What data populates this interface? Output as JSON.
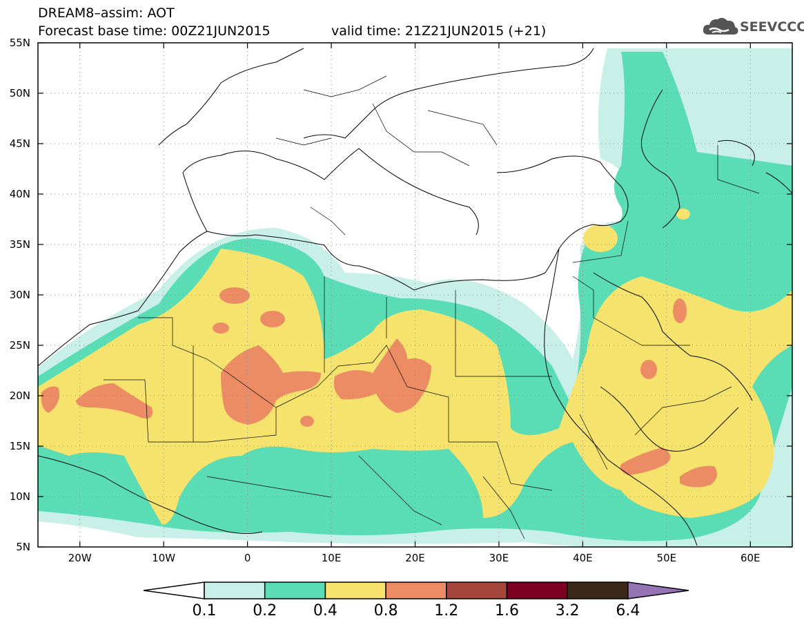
{
  "title": {
    "line1": "DREAM8–assim: AOT",
    "line2": "Forecast base time: 00Z21JUN2015",
    "valid": "valid time: 21Z21JUN2015 (+21)"
  },
  "logo": {
    "text": "SEEVCCC",
    "icon": "cloud-icon",
    "color": "#555555"
  },
  "map": {
    "lon_range": [
      -25,
      65
    ],
    "lat_range": [
      5,
      55
    ],
    "lat_ticks": [
      {
        "value": 55,
        "label": "55N"
      },
      {
        "value": 50,
        "label": "50N"
      },
      {
        "value": 45,
        "label": "45N"
      },
      {
        "value": 40,
        "label": "40N"
      },
      {
        "value": 35,
        "label": "35N"
      },
      {
        "value": 30,
        "label": "30N"
      },
      {
        "value": 25,
        "label": "25N"
      },
      {
        "value": 20,
        "label": "20N"
      },
      {
        "value": 15,
        "label": "15N"
      },
      {
        "value": 10,
        "label": "10N"
      },
      {
        "value": 5,
        "label": "5N"
      }
    ],
    "lon_ticks": [
      {
        "value": -20,
        "label": "20W"
      },
      {
        "value": -10,
        "label": "10W"
      },
      {
        "value": 0,
        "label": "0"
      },
      {
        "value": 10,
        "label": "10E"
      },
      {
        "value": 20,
        "label": "20E"
      },
      {
        "value": 30,
        "label": "30E"
      },
      {
        "value": 40,
        "label": "40E"
      },
      {
        "value": 50,
        "label": "50E"
      },
      {
        "value": 60,
        "label": "60E"
      }
    ],
    "grid": "dotted"
  },
  "colorbar": {
    "labels": [
      "0.1",
      "0.2",
      "0.4",
      "0.8",
      "1.2",
      "1.6",
      "3.2",
      "6.4"
    ],
    "colors": [
      "#ffffff",
      "#c8f0e8",
      "#5adcb4",
      "#f5e36e",
      "#eb8c64",
      "#a5463c",
      "#7d0023",
      "#3c2819",
      "#9673b4"
    ]
  }
}
